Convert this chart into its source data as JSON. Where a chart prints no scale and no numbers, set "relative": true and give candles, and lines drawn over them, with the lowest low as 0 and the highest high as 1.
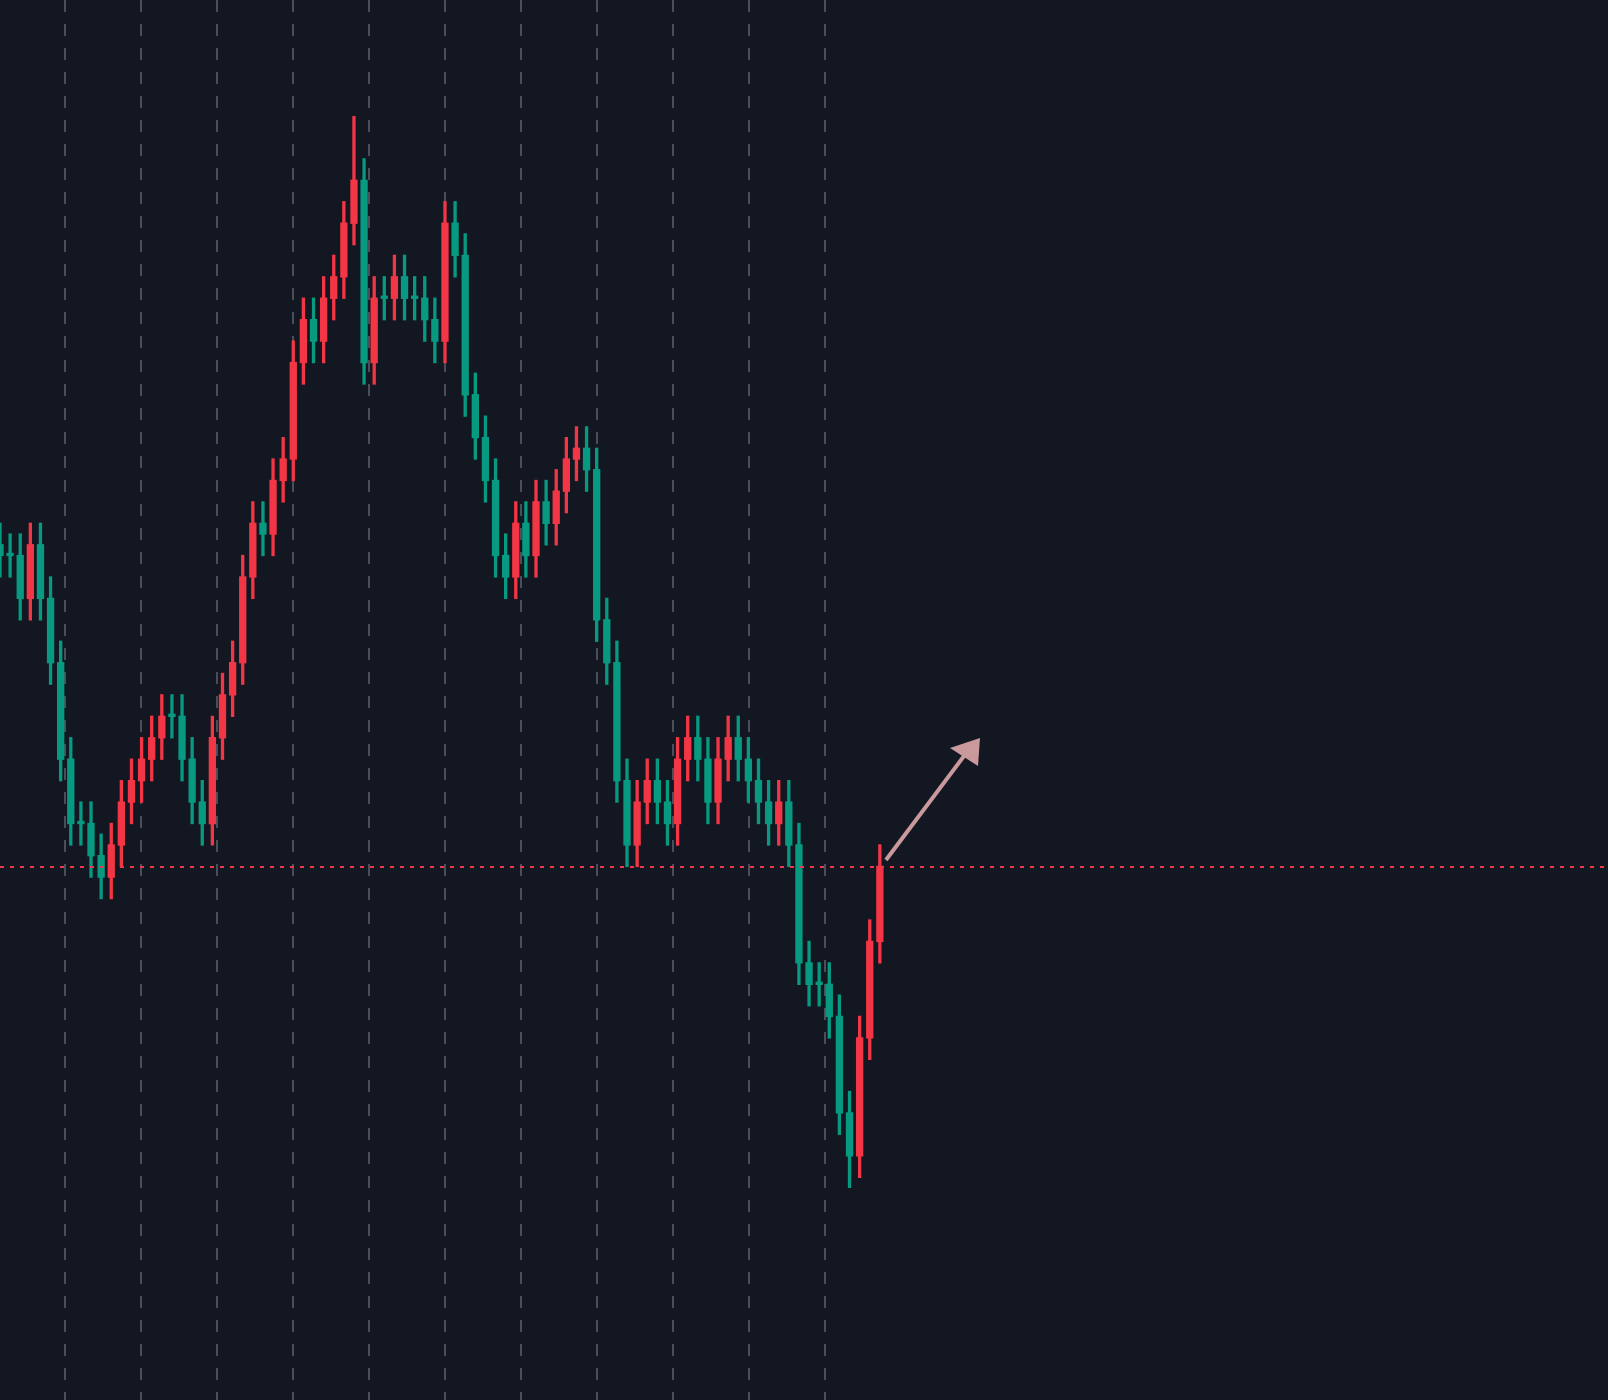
{
  "chart_data": {
    "type": "candlestick",
    "relative": true,
    "categories": [
      null,
      null,
      null,
      null,
      null,
      null,
      null,
      null,
      null,
      null,
      null,
      null,
      null,
      null,
      null,
      null,
      null,
      null,
      null,
      null,
      null,
      null,
      null,
      null,
      null,
      null,
      null,
      null,
      null,
      null,
      null,
      null,
      null,
      null,
      null,
      null,
      null,
      null,
      null,
      null,
      null,
      null,
      null,
      null,
      null,
      null,
      null,
      null,
      null,
      null,
      null,
      null,
      null,
      null,
      null,
      null,
      null,
      null,
      null,
      null,
      null,
      null,
      null,
      null,
      null,
      null,
      null,
      null,
      null,
      null,
      null,
      null,
      null,
      null,
      null,
      null,
      null,
      null,
      null,
      null,
      null,
      null,
      null,
      null,
      null,
      null,
      null,
      null,
      null,
      null,
      null,
      null,
      null,
      null,
      null,
      null,
      null,
      null,
      null,
      null,
      null,
      null,
      null,
      null,
      null,
      null,
      null,
      null,
      null,
      null,
      null,
      null,
      null,
      null,
      null,
      null,
      null,
      null,
      null,
      null,
      null,
      null,
      null,
      null,
      null,
      null,
      null,
      null,
      null,
      null,
      null,
      null,
      null,
      null,
      null,
      null,
      null,
      null,
      null,
      null,
      null,
      null,
      null,
      null,
      null,
      null,
      null,
      null,
      null,
      null,
      null,
      null,
      null,
      null,
      null,
      null,
      null,
      null,
      null,
      null
    ],
    "ohlc": [
      [
        0.6,
        0.62,
        0.57,
        0.59
      ],
      [
        0.59,
        0.61,
        0.57,
        0.59
      ],
      [
        0.59,
        0.61,
        0.53,
        0.55
      ],
      [
        0.55,
        0.62,
        0.53,
        0.6
      ],
      [
        0.6,
        0.62,
        0.53,
        0.55
      ],
      [
        0.55,
        0.57,
        0.47,
        0.49
      ],
      [
        0.49,
        0.51,
        0.38,
        0.4
      ],
      [
        0.4,
        0.42,
        0.32,
        0.34
      ],
      [
        0.34,
        0.36,
        0.32,
        0.34
      ],
      [
        0.34,
        0.36,
        0.29,
        0.31
      ],
      [
        0.31,
        0.33,
        0.27,
        0.29
      ],
      [
        0.29,
        0.34,
        0.27,
        0.32
      ],
      [
        0.32,
        0.38,
        0.3,
        0.36
      ],
      [
        0.36,
        0.4,
        0.34,
        0.38
      ],
      [
        0.38,
        0.42,
        0.36,
        0.4
      ],
      [
        0.4,
        0.44,
        0.38,
        0.42
      ],
      [
        0.42,
        0.46,
        0.4,
        0.44
      ],
      [
        0.44,
        0.46,
        0.42,
        0.44
      ],
      [
        0.44,
        0.46,
        0.38,
        0.4
      ],
      [
        0.4,
        0.42,
        0.34,
        0.36
      ],
      [
        0.36,
        0.38,
        0.32,
        0.34
      ],
      [
        0.34,
        0.44,
        0.32,
        0.42
      ],
      [
        0.42,
        0.48,
        0.4,
        0.46
      ],
      [
        0.46,
        0.51,
        0.44,
        0.49
      ],
      [
        0.49,
        0.59,
        0.47,
        0.57
      ],
      [
        0.57,
        0.64,
        0.55,
        0.62
      ],
      [
        0.62,
        0.64,
        0.59,
        0.61
      ],
      [
        0.61,
        0.68,
        0.59,
        0.66
      ],
      [
        0.66,
        0.7,
        0.64,
        0.68
      ],
      [
        0.68,
        0.79,
        0.66,
        0.77
      ],
      [
        0.77,
        0.83,
        0.75,
        0.81
      ],
      [
        0.81,
        0.83,
        0.77,
        0.79
      ],
      [
        0.79,
        0.85,
        0.77,
        0.83
      ],
      [
        0.83,
        0.87,
        0.81,
        0.85
      ],
      [
        0.85,
        0.92,
        0.83,
        0.9
      ],
      [
        0.9,
        1,
        0.88,
        0.94
      ],
      [
        0.94,
        0.96,
        0.75,
        0.77
      ],
      [
        0.77,
        0.85,
        0.75,
        0.83
      ],
      [
        0.83,
        0.85,
        0.81,
        0.83
      ],
      [
        0.83,
        0.87,
        0.81,
        0.85
      ],
      [
        0.85,
        0.87,
        0.81,
        0.83
      ],
      [
        0.83,
        0.85,
        0.81,
        0.83
      ],
      [
        0.83,
        0.85,
        0.79,
        0.81
      ],
      [
        0.81,
        0.83,
        0.77,
        0.79
      ],
      [
        0.79,
        0.92,
        0.77,
        0.9
      ],
      [
        0.9,
        0.92,
        0.85,
        0.87
      ],
      [
        0.87,
        0.89,
        0.72,
        0.74
      ],
      [
        0.74,
        0.76,
        0.68,
        0.7
      ],
      [
        0.7,
        0.72,
        0.64,
        0.66
      ],
      [
        0.66,
        0.68,
        0.57,
        0.59
      ],
      [
        0.59,
        0.61,
        0.55,
        0.57
      ],
      [
        0.57,
        0.64,
        0.55,
        0.62
      ],
      [
        0.62,
        0.64,
        0.57,
        0.59
      ],
      [
        0.59,
        0.66,
        0.57,
        0.64
      ],
      [
        0.64,
        0.66,
        0.6,
        0.62
      ],
      [
        0.62,
        0.67,
        0.6,
        0.65
      ],
      [
        0.65,
        0.7,
        0.63,
        0.68
      ],
      [
        0.68,
        0.71,
        0.66,
        0.69
      ],
      [
        0.69,
        0.71,
        0.65,
        0.67
      ],
      [
        0.67,
        0.69,
        0.51,
        0.53
      ],
      [
        0.53,
        0.55,
        0.47,
        0.49
      ],
      [
        0.49,
        0.51,
        0.36,
        0.38
      ],
      [
        0.38,
        0.4,
        0.3,
        0.32
      ],
      [
        0.32,
        0.38,
        0.3,
        0.36
      ],
      [
        0.36,
        0.4,
        0.34,
        0.38
      ],
      [
        0.38,
        0.4,
        0.34,
        0.36
      ],
      [
        0.36,
        0.38,
        0.32,
        0.34
      ],
      [
        0.34,
        0.42,
        0.32,
        0.4
      ],
      [
        0.4,
        0.44,
        0.38,
        0.42
      ],
      [
        0.42,
        0.44,
        0.38,
        0.4
      ],
      [
        0.4,
        0.42,
        0.34,
        0.36
      ],
      [
        0.36,
        0.42,
        0.34,
        0.4
      ],
      [
        0.4,
        0.44,
        0.38,
        0.42
      ],
      [
        0.42,
        0.44,
        0.38,
        0.4
      ],
      [
        0.4,
        0.42,
        0.36,
        0.38
      ],
      [
        0.38,
        0.4,
        0.34,
        0.36
      ],
      [
        0.36,
        0.38,
        0.32,
        0.34
      ],
      [
        0.34,
        0.38,
        0.32,
        0.36
      ],
      [
        0.36,
        0.38,
        0.3,
        0.32
      ],
      [
        0.32,
        0.34,
        0.19,
        0.21
      ],
      [
        0.21,
        0.23,
        0.17,
        0.19
      ],
      [
        0.19,
        0.21,
        0.17,
        0.19
      ],
      [
        0.19,
        0.21,
        0.14,
        0.16
      ],
      [
        0.16,
        0.18,
        0.05,
        0.07
      ],
      [
        0.07,
        0.09,
        0,
        0.03
      ],
      [
        0.03,
        0.16,
        0.01,
        0.14
      ],
      [
        0.14,
        0.25,
        0.12,
        0.23
      ],
      [
        0.23,
        0.32,
        0.21,
        0.3
      ],
      null,
      null,
      null,
      null,
      null,
      null,
      null,
      null,
      null,
      null,
      null,
      null,
      null,
      null,
      null,
      null,
      null,
      null,
      null,
      null,
      null,
      null,
      null,
      null,
      null,
      null,
      null,
      null,
      null,
      null,
      null,
      null,
      null,
      null,
      null,
      null,
      null,
      null,
      null,
      null,
      null,
      null,
      null,
      null,
      null,
      null,
      null,
      null,
      null,
      null,
      null,
      null,
      null,
      null,
      null,
      null,
      null,
      null,
      null,
      null,
      null,
      null,
      null,
      null,
      null,
      null,
      null,
      null,
      null,
      null,
      null,
      null
    ],
    "colors": [
      "#089981",
      "#089981",
      "#089981",
      "#f23645",
      "#089981",
      "#089981",
      "#089981",
      "#089981",
      "#089981",
      "#089981",
      "#089981",
      "#f23645",
      "#f23645",
      "#f23645",
      "#f23645",
      "#f23645",
      "#f23645",
      "#089981",
      "#089981",
      "#089981",
      "#089981",
      "#f23645",
      "#f23645",
      "#f23645",
      "#f23645",
      "#f23645",
      "#089981",
      "#f23645",
      "#f23645",
      "#f23645",
      "#f23645",
      "#089981",
      "#f23645",
      "#f23645",
      "#f23645",
      "#f23645",
      "#089981",
      "#f23645",
      "#089981",
      "#f23645",
      "#089981",
      "#089981",
      "#089981",
      "#089981",
      "#f23645",
      "#089981",
      "#089981",
      "#089981",
      "#089981",
      "#089981",
      "#089981",
      "#f23645",
      "#089981",
      "#f23645",
      "#089981",
      "#f23645",
      "#f23645",
      "#f23645",
      "#089981",
      "#089981",
      "#089981",
      "#089981",
      "#089981",
      "#f23645",
      "#f23645",
      "#089981",
      "#089981",
      "#f23645",
      "#f23645",
      "#089981",
      "#089981",
      "#f23645",
      "#f23645",
      "#089981",
      "#089981",
      "#089981",
      "#089981",
      "#f23645",
      "#089981",
      "#089981",
      "#089981",
      "#089981",
      "#089981",
      "#089981",
      "#089981",
      "#f23645",
      "#f23645",
      "#f23645",
      null,
      null,
      null,
      null,
      null,
      null,
      null,
      null,
      null,
      null,
      null,
      null,
      null,
      null,
      null,
      null,
      null,
      null,
      null,
      null,
      null,
      null,
      null,
      null,
      null,
      null,
      null,
      null,
      null,
      null,
      null,
      null,
      null,
      null,
      null,
      null,
      null,
      null,
      null,
      null,
      null,
      null,
      null,
      null,
      null,
      null,
      null,
      null,
      null,
      null,
      null,
      null,
      null,
      null,
      null,
      null,
      null,
      null,
      null,
      null,
      null,
      null,
      null,
      null,
      null,
      null,
      null,
      null,
      null,
      null,
      null,
      null
    ],
    "ref_lines": [
      {
        "axis": "y",
        "value": 0.3,
        "color": "#f23645",
        "line_style": "dotted"
      }
    ],
    "legend": false
  }
}
